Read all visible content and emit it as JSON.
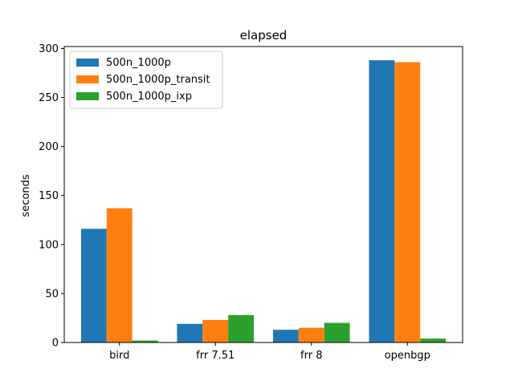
{
  "chart_data": {
    "type": "bar",
    "title": "elapsed",
    "xlabel": "",
    "ylabel": "seconds",
    "categories": [
      "bird",
      "frr 7.51",
      "frr 8",
      "openbgp"
    ],
    "series": [
      {
        "name": "500n_1000p",
        "color": "#1f77b4",
        "values": [
          116,
          19,
          13,
          288
        ]
      },
      {
        "name": "500n_1000p_transit",
        "color": "#ff7f0e",
        "values": [
          137,
          23,
          15,
          286
        ]
      },
      {
        "name": "500n_1000p_ixp",
        "color": "#2ca02c",
        "values": [
          2,
          28,
          20,
          4
        ]
      }
    ],
    "ylim": [
      0,
      302
    ],
    "yticks": [
      0,
      50,
      100,
      150,
      200,
      250,
      300
    ],
    "grid": false,
    "legend_position": "top-left"
  }
}
